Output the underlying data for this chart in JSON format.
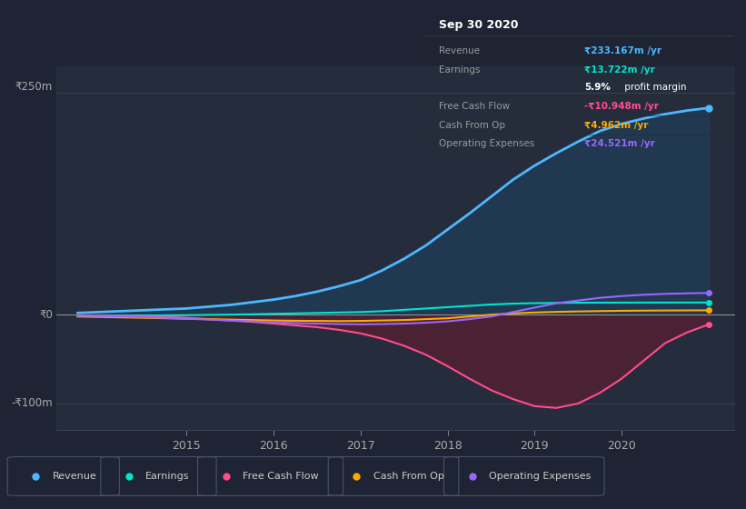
{
  "background_color": "#1e2433",
  "plot_bg_color": "#252d3d",
  "ylim": [
    -130,
    280
  ],
  "xlim": [
    2013.5,
    2021.3
  ],
  "years": [
    2013.75,
    2014.0,
    2014.25,
    2014.5,
    2014.75,
    2015.0,
    2015.25,
    2015.5,
    2015.75,
    2016.0,
    2016.25,
    2016.5,
    2016.75,
    2017.0,
    2017.25,
    2017.5,
    2017.75,
    2018.0,
    2018.25,
    2018.5,
    2018.75,
    2019.0,
    2019.25,
    2019.5,
    2019.75,
    2020.0,
    2020.25,
    2020.5,
    2020.75,
    2021.0
  ],
  "revenue": [
    2,
    3,
    4,
    5,
    6,
    7,
    9,
    11,
    14,
    17,
    21,
    26,
    32,
    39,
    50,
    63,
    78,
    96,
    114,
    133,
    152,
    168,
    182,
    195,
    207,
    215,
    221,
    226,
    230,
    233
  ],
  "earnings": [
    -1.5,
    -1.3,
    -1.1,
    -0.9,
    -0.7,
    -0.5,
    -0.2,
    0.1,
    0.5,
    1.0,
    1.5,
    2.0,
    2.5,
    3.0,
    4.0,
    5.5,
    7.0,
    8.5,
    10.0,
    11.5,
    12.5,
    13.0,
    13.3,
    13.5,
    13.6,
    13.65,
    13.7,
    13.71,
    13.715,
    13.722
  ],
  "free_cash_flow": [
    -1.0,
    -1.2,
    -1.5,
    -1.8,
    -2.5,
    -3.5,
    -5.0,
    -6.5,
    -8.0,
    -10.0,
    -12.0,
    -14.0,
    -17.0,
    -21.0,
    -27.0,
    -35.0,
    -45.0,
    -58.0,
    -72.0,
    -85.0,
    -95.0,
    -103.0,
    -105.0,
    -100.0,
    -88.0,
    -72.0,
    -52.0,
    -32.0,
    -20.0,
    -10.948
  ],
  "cash_from_op": [
    -2.0,
    -2.5,
    -3.0,
    -3.5,
    -4.0,
    -4.5,
    -5.0,
    -5.5,
    -6.0,
    -6.5,
    -6.8,
    -7.0,
    -7.2,
    -7.0,
    -6.5,
    -6.0,
    -5.0,
    -4.0,
    -2.0,
    0.0,
    1.5,
    2.5,
    3.2,
    3.7,
    4.1,
    4.4,
    4.6,
    4.75,
    4.85,
    4.962
  ],
  "operating_expenses": [
    -1.0,
    -1.5,
    -2.0,
    -2.8,
    -3.5,
    -4.5,
    -5.5,
    -6.5,
    -7.5,
    -8.5,
    -9.5,
    -10.0,
    -10.5,
    -10.8,
    -10.5,
    -10.0,
    -9.0,
    -7.5,
    -5.0,
    -2.0,
    3.0,
    8.0,
    13.0,
    16.0,
    19.0,
    21.0,
    22.5,
    23.5,
    24.1,
    24.521
  ],
  "revenue_color": "#4db8ff",
  "earnings_color": "#00e5cc",
  "free_cash_flow_color": "#ff4d8d",
  "cash_from_op_color": "#ffaa00",
  "operating_expenses_color": "#9966ff",
  "revenue_fill_color": "#1a4a6e",
  "free_cash_flow_fill_color": "#6b1a2e",
  "y_label_250": "₹250m",
  "y_label_0": "₹0",
  "y_label_neg100": "-₹100m",
  "legend_items": [
    "Revenue",
    "Earnings",
    "Free Cash Flow",
    "Cash From Op",
    "Operating Expenses"
  ],
  "legend_colors": [
    "#4db8ff",
    "#00e5cc",
    "#ff4d8d",
    "#ffaa00",
    "#9966ff"
  ],
  "info_box": {
    "title": "Sep 30 2020",
    "rows": [
      {
        "label": "Revenue",
        "value": "₹233.167m /yr",
        "value_color": "#4db8ff"
      },
      {
        "label": "Earnings",
        "value": "₹13.722m /yr",
        "value_color": "#00e5cc"
      },
      {
        "label": "",
        "value2_bold": "5.9%",
        "value2_rest": " profit margin",
        "value_color": "#ffffff"
      },
      {
        "label": "Free Cash Flow",
        "value": "-₹10.948m /yr",
        "value_color": "#ff4d8d"
      },
      {
        "label": "Cash From Op",
        "value": "₹4.962m /yr",
        "value_color": "#ffaa00"
      },
      {
        "label": "Operating Expenses",
        "value": "₹24.521m /yr",
        "value_color": "#9966ff"
      }
    ],
    "bg_color": "#0d0d0d",
    "text_color": "#999999",
    "title_color": "#ffffff"
  },
  "grid_color": "#3a4255",
  "text_color": "#aaaaaa"
}
